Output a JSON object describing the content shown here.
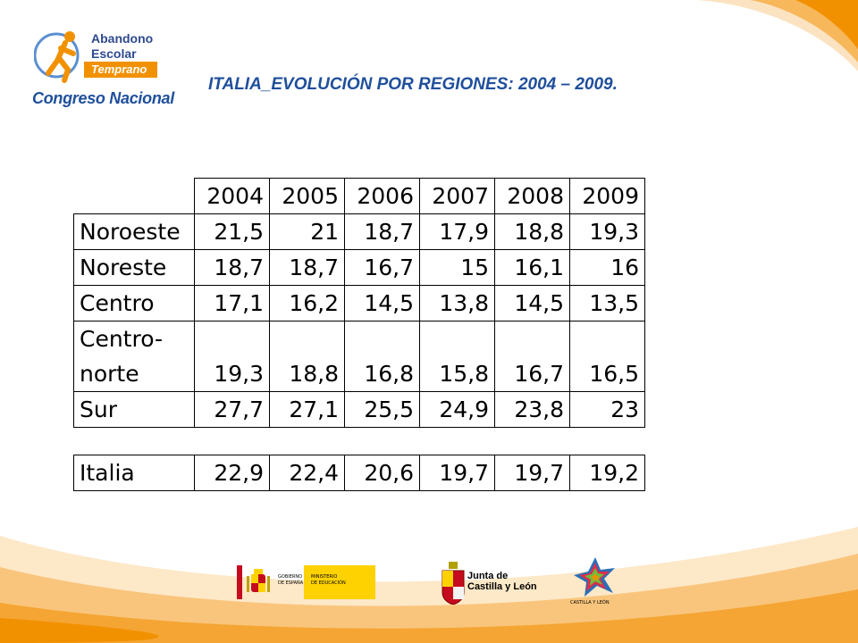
{
  "logo": {
    "line1": "Abandono",
    "line2": "Escolar",
    "badge": "Temprano",
    "bottom": "Congreso Nacional"
  },
  "title": "ITALIA_EVOLUCIÓN  POR  REGIONES: 2004 – 2009.",
  "table": {
    "years": [
      "2004",
      "2005",
      "2006",
      "2007",
      "2008",
      "2009"
    ],
    "rows": [
      {
        "region": "Noroeste",
        "values": [
          "21,5",
          "21",
          "18,7",
          "17,9",
          "18,8",
          "19,3"
        ]
      },
      {
        "region": "Noreste",
        "values": [
          "18,7",
          "18,7",
          "16,7",
          "15",
          "16,1",
          "16"
        ]
      },
      {
        "region": "Centro",
        "values": [
          "17,1",
          "16,2",
          "14,5",
          "13,8",
          "14,5",
          "13,5"
        ]
      },
      {
        "region_line1": "Centro-",
        "region_line2": "norte",
        "values": [
          "19,3",
          "18,8",
          "16,8",
          "15,8",
          "16,7",
          "16,5"
        ]
      },
      {
        "region": "Sur",
        "values": [
          "27,7",
          "27,1",
          "25,5",
          "24,9",
          "23,8",
          "23"
        ]
      }
    ],
    "total": {
      "region": "Italia",
      "values": [
        "22,9",
        "22,4",
        "20,6",
        "19,7",
        "19,7",
        "19,2"
      ]
    }
  },
  "footer": {
    "gobierno_line1": "GOBIERNO",
    "gobierno_line2": "DE ESPAÑA",
    "ministerio_line1": "MINISTERIO",
    "ministerio_line2": "DE EDUCACIÓN",
    "junta_line1": "Junta de",
    "junta_line2": "Castilla y León",
    "cyl_label": "CASTILLA Y LEÓN"
  },
  "colors": {
    "accent_orange": "#f29100",
    "brand_blue": "#1f4f9c"
  }
}
